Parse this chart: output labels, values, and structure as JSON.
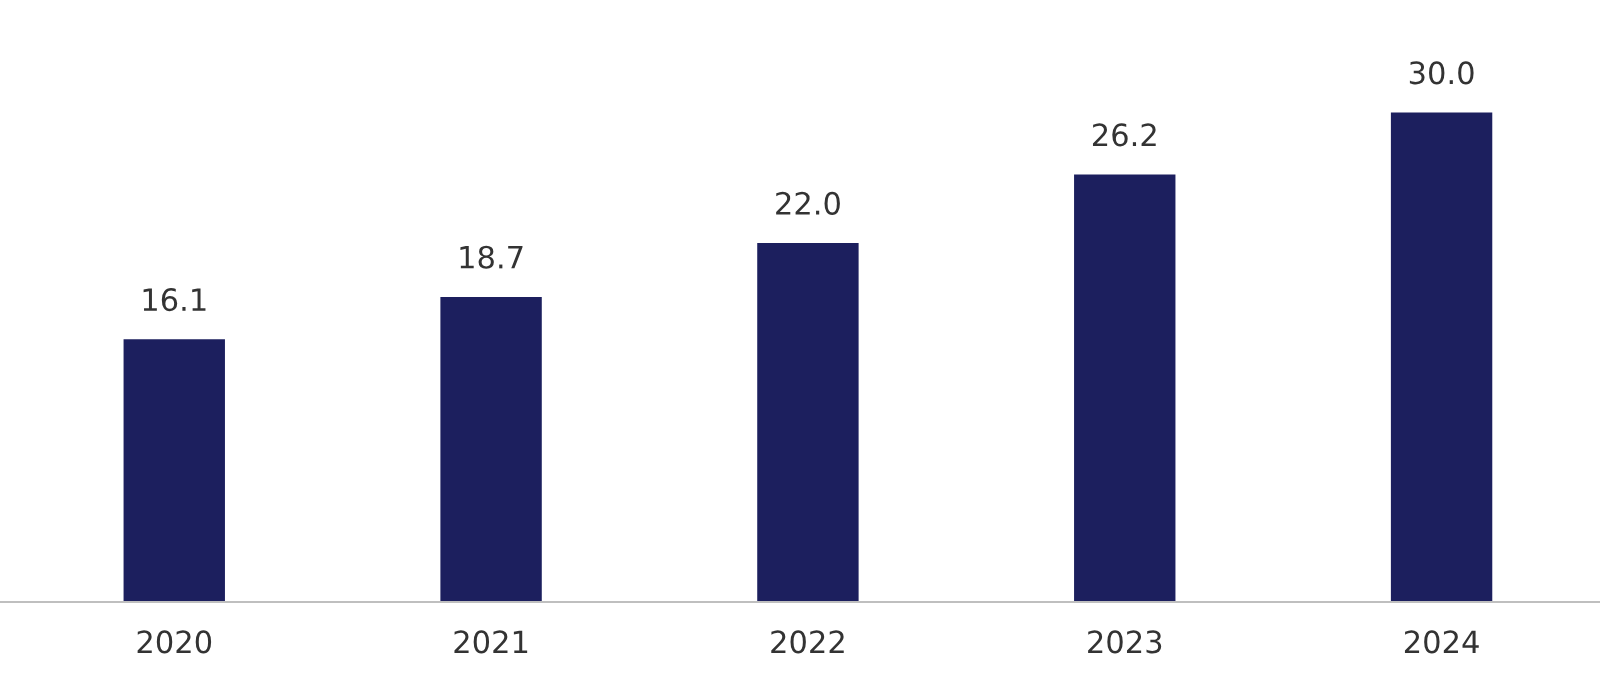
{
  "chart_data": {
    "type": "bar",
    "categories": [
      "2020",
      "2021",
      "2022",
      "2023",
      "2024"
    ],
    "values": [
      16.1,
      18.7,
      22.0,
      26.2,
      30.0
    ],
    "value_labels": [
      "16.1",
      "18.7",
      "22.0",
      "26.2",
      "30.0"
    ],
    "color": "#1c1f5e",
    "grid": false,
    "legend": false
  }
}
